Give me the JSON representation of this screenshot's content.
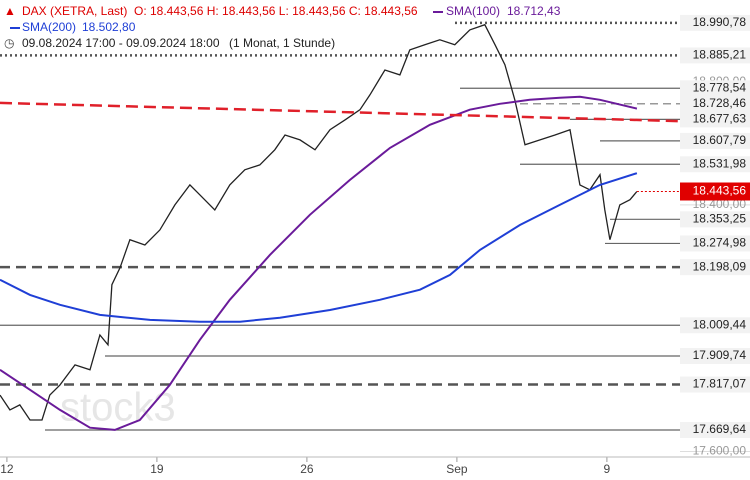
{
  "chart_data": {
    "type": "line",
    "header": {
      "symbol": "DAX (XETRA, Last)",
      "ohlc": "O: 18.443,56   H: 18.443,56   L: 18.443,56   C: 18.443,56",
      "sma100_name": "SMA(100)",
      "sma100_value": "18.712,43",
      "sma200_name": "SMA(200)",
      "sma200_value": "18.502,80",
      "range": "09.08.2024 17:00 - 09.09.2024 18:00",
      "period": "(1 Monat, 1 Stunde)"
    },
    "watermark": "stock3",
    "xlim": [
      -0.23,
      24.77
    ],
    "ylim": [
      17582,
      19065
    ],
    "xticks": [
      {
        "value": 0,
        "label": "12"
      },
      {
        "value": 5,
        "label": "19"
      },
      {
        "value": 10,
        "label": "26"
      },
      {
        "value": 15,
        "label": "Sep"
      },
      {
        "value": 20,
        "label": "9"
      }
    ],
    "yticks": [
      {
        "value": 18800,
        "label": "18.800,00"
      },
      {
        "value": 18400,
        "label": "18.400,00"
      },
      {
        "value": 17600,
        "label": "17.600,00"
      }
    ],
    "series": [
      {
        "name": "DAX",
        "color": "#222222",
        "x": [
          -0.23,
          0.1,
          0.43,
          0.77,
          1.17,
          1.43,
          1.77,
          2.27,
          2.77,
          3.1,
          3.37,
          3.5,
          3.77,
          4.1,
          4.6,
          5.1,
          5.6,
          6.1,
          6.43,
          6.93,
          7.43,
          7.93,
          8.43,
          8.93,
          9.27,
          9.77,
          10.27,
          10.77,
          11.27,
          11.77,
          12.1,
          12.6,
          13.1,
          13.43,
          13.93,
          14.43,
          14.93,
          15.43,
          15.93,
          16.27,
          16.6,
          16.93,
          17.27,
          17.77,
          18.27,
          18.77,
          19.1,
          19.43,
          19.77,
          19.93,
          20.1,
          20.43,
          20.77,
          21
        ],
        "values": [
          17783,
          17735,
          17751,
          17702,
          17702,
          17783,
          17816,
          17881,
          17865,
          17978,
          17946,
          18141,
          18196,
          18287,
          18270,
          18319,
          18400,
          18465,
          18433,
          18384,
          18465,
          18514,
          18530,
          18579,
          18627,
          18611,
          18579,
          18644,
          18676,
          18709,
          18757,
          18838,
          18822,
          18903,
          18920,
          18936,
          18920,
          18968,
          18985,
          18920,
          18855,
          18741,
          18595,
          18611,
          18627,
          18644,
          18465,
          18449,
          18498,
          18384,
          18287,
          18400,
          18417,
          18443.56
        ]
      },
      {
        "name": "SMA(100)",
        "color": "#6a1b9a",
        "x": [
          -0.23,
          0.77,
          1.77,
          2.77,
          3.6,
          4.43,
          5.43,
          6.43,
          7.43,
          8.77,
          10.1,
          11.43,
          12.77,
          14.1,
          15.43,
          16.43,
          17.43,
          18.43,
          19.1,
          19.77,
          21
        ],
        "values": [
          17865,
          17800,
          17735,
          17677,
          17670,
          17702,
          17816,
          17962,
          18092,
          18238,
          18368,
          18481,
          18585,
          18660,
          18709,
          18728,
          18741,
          18748,
          18751,
          18741,
          18712.43
        ]
      },
      {
        "name": "SMA(200)",
        "color": "#1f3fd6",
        "x": [
          -0.23,
          0.77,
          1.77,
          3.1,
          4.77,
          6.43,
          7.77,
          9.1,
          10.77,
          12.43,
          13.77,
          14.77,
          15.77,
          17.1,
          18.43,
          19.77,
          21
        ],
        "values": [
          18157,
          18108,
          18076,
          18043,
          18027,
          18021,
          18021,
          18034,
          18059,
          18092,
          18125,
          18173,
          18254,
          18335,
          18400,
          18465,
          18502.8
        ]
      },
      {
        "name": "Trendlinie",
        "color": "#e0202a",
        "x": [
          -0.23,
          24.77
        ],
        "values": [
          18731,
          18666
        ]
      }
    ],
    "levels": [
      {
        "value": 18990.78,
        "label": "18.990,78",
        "style": "dotted"
      },
      {
        "value": 18885.21,
        "label": "18.885,21",
        "style": "dotted"
      },
      {
        "value": 18778.54,
        "label": "18.778,54",
        "style": "solid"
      },
      {
        "value": 18728.46,
        "label": "18.728,46",
        "style": "dashed-light"
      },
      {
        "value": 18677.63,
        "label": "18.677,63",
        "style": "solid"
      },
      {
        "value": 18607.79,
        "label": "18.607,79",
        "style": "solid"
      },
      {
        "value": 18531.98,
        "label": "18.531,98",
        "style": "solid"
      },
      {
        "value": 18353.25,
        "label": "18.353,25",
        "style": "solid"
      },
      {
        "value": 18274.98,
        "label": "18.274,98",
        "style": "solid"
      },
      {
        "value": 18198.09,
        "label": "18.198,09",
        "style": "dashed"
      },
      {
        "value": 18009.44,
        "label": "18.009,44",
        "style": "solid"
      },
      {
        "value": 17909.74,
        "label": "17.909,74",
        "style": "solid"
      },
      {
        "value": 17817.07,
        "label": "17.817,07",
        "style": "dashed"
      },
      {
        "value": 17669.64,
        "label": "17.669,64",
        "style": "solid"
      }
    ],
    "last": {
      "value": 18443.56,
      "label": "18.443,56",
      "color": "#e00000"
    }
  }
}
